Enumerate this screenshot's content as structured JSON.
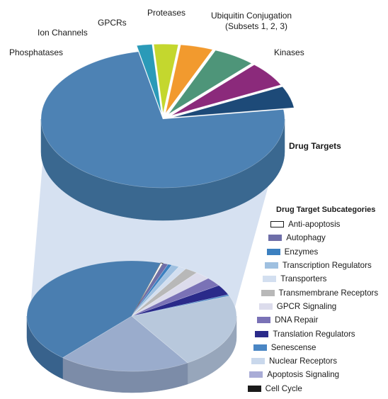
{
  "chart_data": [
    {
      "type": "pie",
      "title": "",
      "slices": [
        {
          "label": "Drug Targets",
          "value": 74.0,
          "color": "#4d82b4",
          "side": "#3a6890",
          "bold": true
        },
        {
          "label": "Phosphatases",
          "value": 2.0,
          "color": "#2a9ab8",
          "side": "#1d7a94",
          "bold": false
        },
        {
          "label": "Ion Channels",
          "value": 3.2,
          "color": "#c4d72e",
          "side": "#9aab1f",
          "bold": false
        },
        {
          "label": "GPCRs",
          "value": 4.3,
          "color": "#f29a2e",
          "side": "#c27620",
          "bold": false
        },
        {
          "label": "Proteases",
          "value": 5.6,
          "color": "#4e9579",
          "side": "#3b735d",
          "bold": false
        },
        {
          "label": "Ubiquitin Conjugation (Subsets 1, 2, 3)",
          "value": 5.8,
          "color": "#8b2a7b",
          "side": "#6b1f5e",
          "bold": false
        },
        {
          "label": "Kinases",
          "value": 5.1,
          "color": "#1d4a78",
          "side": "#14365a",
          "bold": false
        }
      ]
    },
    {
      "type": "pie",
      "title": "Drug Target Subcategories",
      "slices": [
        {
          "label": "Anti-apoptosis",
          "value": 0.4,
          "color": "#ffffff",
          "side": "#d9d9d9",
          "border": "#1a1a1a"
        },
        {
          "label": "Autophagy",
          "value": 0.8,
          "color": "#6e6ea8",
          "side": "#555585"
        },
        {
          "label": "Enzymes",
          "value": 0.6,
          "color": "#3c80c0",
          "side": "#2e6496"
        },
        {
          "label": "Transcription Regulators",
          "value": 1.2,
          "color": "#9fc0e0",
          "side": "#7e9cb8"
        },
        {
          "label": "Transporters",
          "value": 1.2,
          "color": "#d3dff0",
          "side": "#aebcd0"
        },
        {
          "label": "Transmembrane Receptors",
          "value": 2.0,
          "color": "#b8b8b8",
          "side": "#939393"
        },
        {
          "label": "GPCR Signaling",
          "value": 2.4,
          "color": "#dcdcec",
          "side": "#b5b5c8"
        },
        {
          "label": "DNA Repair",
          "value": 2.6,
          "color": "#7a72b6",
          "side": "#5f5890"
        },
        {
          "label": "Translation Regulators",
          "value": 3.0,
          "color": "#2a2a8a",
          "side": "#1f1f6a"
        },
        {
          "label": "Senescense",
          "value": 0.4,
          "color": "#4a86c4",
          "side": "#3a6a9c"
        },
        {
          "label": "Nuclear Receptors",
          "value": 22.0,
          "color": "#b8c8dc",
          "side": "#97a6bb"
        },
        {
          "label": "Apoptosis Signaling",
          "value": 20.4,
          "color": "#9aaccc",
          "side": "#7c8ca8"
        },
        {
          "label": "Cell Cycle",
          "value": 43.0,
          "color": "#4a7eb0",
          "side": "#38628c"
        }
      ]
    }
  ],
  "legend": {
    "title": "Drug Target Subcategories",
    "items": [
      {
        "label": "Anti-apoptosis",
        "color": "#ffffff",
        "border": "#1a1a1a"
      },
      {
        "label": "Autophagy",
        "color": "#6e6ea8"
      },
      {
        "label": "Enzymes",
        "color": "#3c80c0"
      },
      {
        "label": "Transcription Regulators",
        "color": "#9fc0e0"
      },
      {
        "label": "Transporters",
        "color": "#d3dff0"
      },
      {
        "label": "Transmembrane Receptors",
        "color": "#b8b8b8"
      },
      {
        "label": "GPCR Signaling",
        "color": "#dcdcec"
      },
      {
        "label": "DNA Repair",
        "color": "#7a72b6"
      },
      {
        "label": "Translation Regulators",
        "color": "#2a2a8a"
      },
      {
        "label": "Senescense",
        "color": "#4a86c4"
      },
      {
        "label": "Nuclear Receptors",
        "color": "#c9d8ec"
      },
      {
        "label": "Apoptosis Signaling",
        "color": "#a9acd6"
      },
      {
        "label": "Cell Cycle",
        "color": "#1a1a1a"
      }
    ]
  },
  "connector_color": "#cfdcef"
}
